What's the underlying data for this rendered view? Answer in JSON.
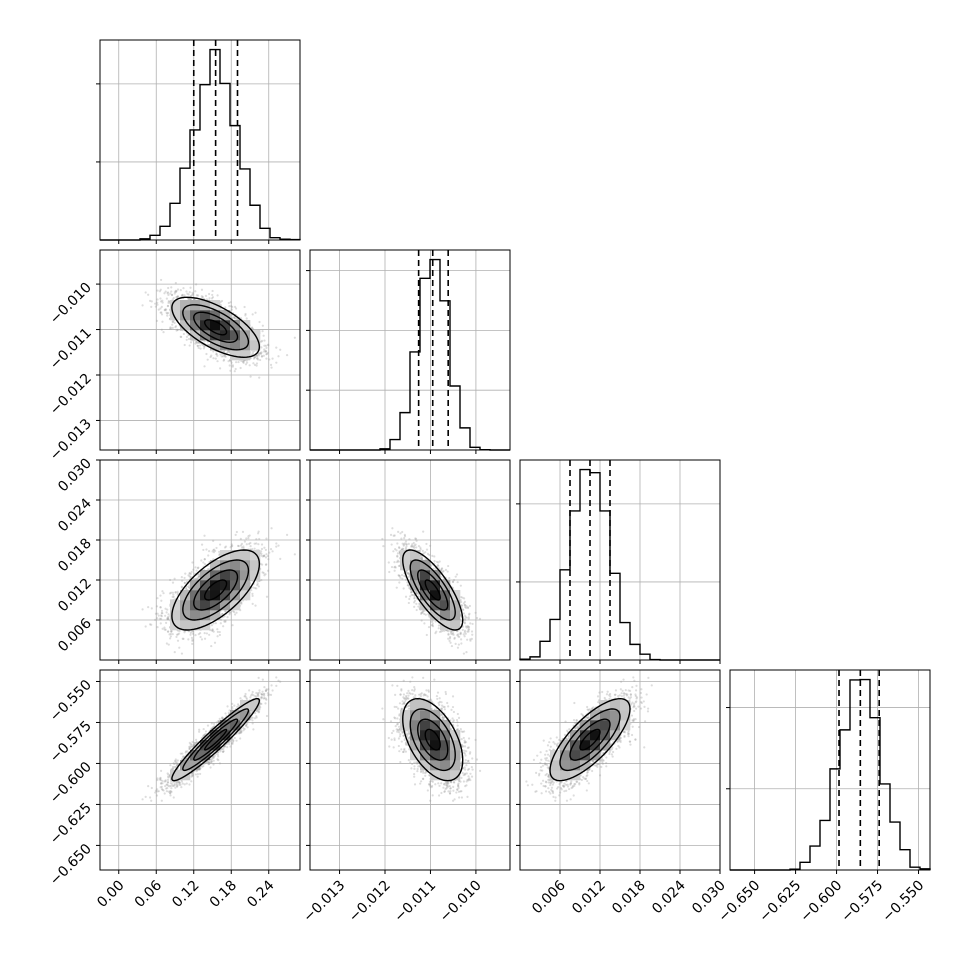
{
  "chart_data": {
    "type": "corner",
    "parameters": [
      {
        "range": [
          -0.03,
          0.29
        ],
        "ticks": [
          0.0,
          0.06,
          0.12,
          0.18,
          0.24
        ],
        "tick_labels": [
          "0.00",
          "0.06",
          "0.12",
          "0.18",
          "0.24"
        ],
        "mean": 0.155,
        "std": 0.035,
        "quantiles": [
          0.12,
          0.155,
          0.19
        ]
      },
      {
        "range": [
          -0.01365,
          -0.00925
        ],
        "ticks": [
          -0.013,
          -0.012,
          -0.011,
          -0.01
        ],
        "tick_labels": [
          "−0.013",
          "−0.012",
          "−0.011",
          "−0.010"
        ],
        "mean": -0.01095,
        "std": 0.00033,
        "quantiles": [
          -0.01126,
          -0.01095,
          -0.01061
        ]
      },
      {
        "range": [
          0.0,
          0.03
        ],
        "ticks": [
          0.006,
          0.012,
          0.018,
          0.024,
          0.03
        ],
        "tick_labels": [
          "0.006",
          "0.012",
          "0.018",
          "0.024",
          "0.030"
        ],
        "mean": 0.0105,
        "std": 0.003,
        "quantiles": [
          0.0075,
          0.0105,
          0.0135
        ]
      },
      {
        "range": [
          -0.665,
          -0.543
        ],
        "ticks": [
          -0.65,
          -0.625,
          -0.6,
          -0.575,
          -0.55
        ],
        "tick_labels": [
          "−0.650",
          "−0.625",
          "−0.600",
          "−0.575",
          "−0.550"
        ],
        "mean": -0.5855,
        "std": 0.0125,
        "quantiles": [
          -0.5985,
          -0.5855,
          -0.574
        ]
      }
    ],
    "correlations": [
      {
        "pair": [
          1,
          0
        ],
        "rho": -0.65
      },
      {
        "pair": [
          2,
          0
        ],
        "rho": 0.65
      },
      {
        "pair": [
          2,
          1
        ],
        "rho": -0.75
      },
      {
        "pair": [
          3,
          0
        ],
        "rho": 0.95
      },
      {
        "pair": [
          3,
          1
        ],
        "rho": -0.5
      },
      {
        "pair": [
          3,
          2
        ],
        "rho": 0.75
      }
    ],
    "grid": true,
    "colors": {
      "line": "#000000",
      "scatter": "#9e9e9e",
      "grid": "#b0b0b0"
    }
  }
}
